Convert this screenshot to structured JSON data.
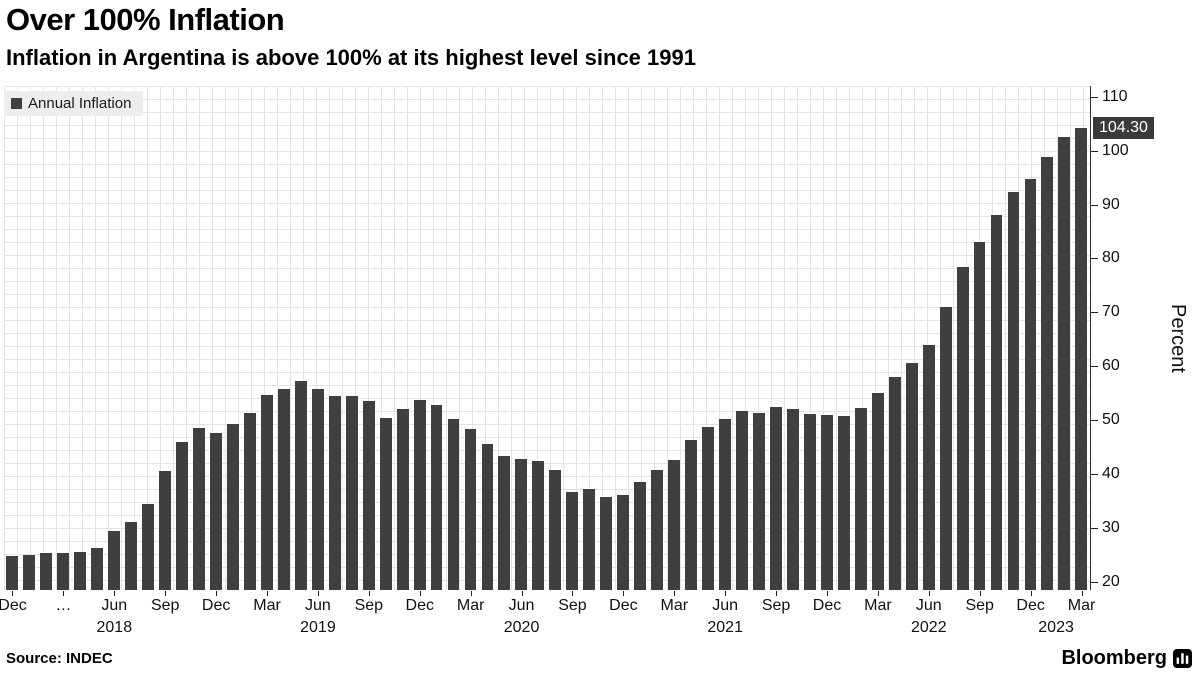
{
  "header": {
    "title": "Over 100% Inflation",
    "subtitle": "Inflation in Argentina is above 100% at its highest level since 1991"
  },
  "legend": {
    "label": "Annual Inflation",
    "swatch_color": "#3f3f3f"
  },
  "chart_data": {
    "type": "bar",
    "title": "Over 100% Inflation",
    "xlabel": "",
    "ylabel": "Percent",
    "ylim": [
      18.5,
      112
    ],
    "yticks": [
      20,
      30,
      40,
      50,
      60,
      70,
      80,
      90,
      100,
      110
    ],
    "grid": true,
    "legend_position": "top-left",
    "bar_color": "#3f3f3f",
    "last_value": 104.3,
    "last_value_label": "104.30",
    "categories": [
      "Dec 2017",
      "Jan 2018",
      "Feb 2018",
      "Mar 2018",
      "Apr 2018",
      "May 2018",
      "Jun 2018",
      "Jul 2018",
      "Aug 2018",
      "Sep 2018",
      "Oct 2018",
      "Nov 2018",
      "Dec 2018",
      "Jan 2019",
      "Feb 2019",
      "Mar 2019",
      "Apr 2019",
      "May 2019",
      "Jun 2019",
      "Jul 2019",
      "Aug 2019",
      "Sep 2019",
      "Oct 2019",
      "Nov 2019",
      "Dec 2019",
      "Jan 2020",
      "Feb 2020",
      "Mar 2020",
      "Apr 2020",
      "May 2020",
      "Jun 2020",
      "Jul 2020",
      "Aug 2020",
      "Sep 2020",
      "Oct 2020",
      "Nov 2020",
      "Dec 2020",
      "Jan 2021",
      "Feb 2021",
      "Mar 2021",
      "Apr 2021",
      "May 2021",
      "Jun 2021",
      "Jul 2021",
      "Aug 2021",
      "Sep 2021",
      "Oct 2021",
      "Nov 2021",
      "Dec 2021",
      "Jan 2022",
      "Feb 2022",
      "Mar 2022",
      "Apr 2022",
      "May 2022",
      "Jun 2022",
      "Jul 2022",
      "Aug 2022",
      "Sep 2022",
      "Oct 2022",
      "Nov 2022",
      "Dec 2022",
      "Jan 2023",
      "Feb 2023",
      "Mar 2023"
    ],
    "values": [
      24.8,
      25.0,
      25.4,
      25.4,
      25.5,
      26.3,
      29.5,
      31.2,
      34.4,
      40.5,
      45.9,
      48.5,
      47.6,
      49.3,
      51.3,
      54.7,
      55.8,
      57.3,
      55.8,
      54.4,
      54.5,
      53.5,
      50.5,
      52.1,
      53.8,
      52.9,
      50.3,
      48.4,
      45.6,
      43.4,
      42.8,
      42.4,
      40.7,
      36.6,
      37.2,
      35.8,
      36.1,
      38.5,
      40.7,
      42.6,
      46.3,
      48.8,
      50.2,
      51.8,
      51.4,
      52.5,
      52.1,
      51.2,
      50.9,
      50.7,
      52.3,
      55.1,
      58.0,
      60.7,
      64.0,
      71.0,
      78.5,
      83.0,
      88.0,
      92.4,
      94.8,
      98.8,
      102.5,
      104.3
    ],
    "xticks": [
      {
        "i": 0,
        "label": "Dec"
      },
      {
        "i": 3,
        "label": "…"
      },
      {
        "i": 6,
        "label": "Jun"
      },
      {
        "i": 9,
        "label": "Sep"
      },
      {
        "i": 12,
        "label": "Dec"
      },
      {
        "i": 15,
        "label": "Mar"
      },
      {
        "i": 18,
        "label": "Jun"
      },
      {
        "i": 21,
        "label": "Sep"
      },
      {
        "i": 24,
        "label": "Dec"
      },
      {
        "i": 27,
        "label": "Mar"
      },
      {
        "i": 30,
        "label": "Jun"
      },
      {
        "i": 33,
        "label": "Sep"
      },
      {
        "i": 36,
        "label": "Dec"
      },
      {
        "i": 39,
        "label": "Mar"
      },
      {
        "i": 42,
        "label": "Jun"
      },
      {
        "i": 45,
        "label": "Sep"
      },
      {
        "i": 48,
        "label": "Dec"
      },
      {
        "i": 51,
        "label": "Mar"
      },
      {
        "i": 54,
        "label": "Jun"
      },
      {
        "i": 57,
        "label": "Sep"
      },
      {
        "i": 60,
        "label": "Dec"
      },
      {
        "i": 63,
        "label": "Mar"
      }
    ],
    "year_ticks": [
      {
        "i": 6,
        "label": "2018"
      },
      {
        "i": 18,
        "label": "2019"
      },
      {
        "i": 30,
        "label": "2020"
      },
      {
        "i": 42,
        "label": "2021"
      },
      {
        "i": 54,
        "label": "2022"
      },
      {
        "i": 61.5,
        "label": "2023"
      }
    ]
  },
  "footer": {
    "source": "Source: INDEC",
    "brand": "Bloomberg"
  }
}
